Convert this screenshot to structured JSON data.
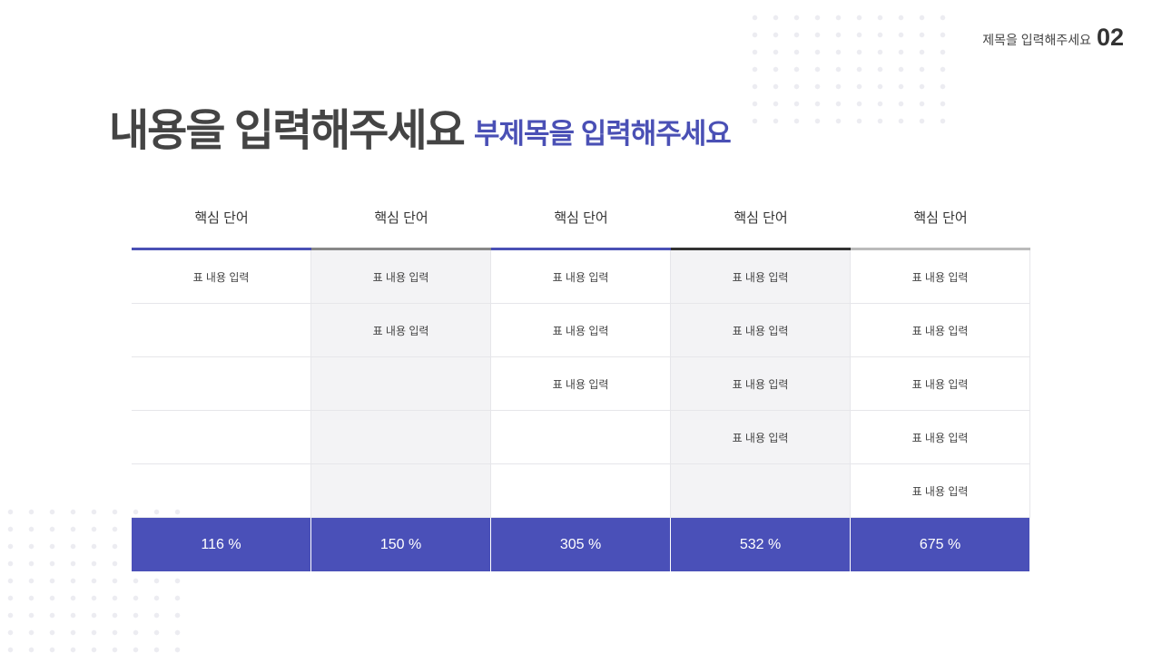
{
  "header": {
    "section": "제목을 입력해주세요",
    "number": "02",
    "title": "내용을 입력해주세요",
    "subtitle": "부제목을 입력해주세요"
  },
  "table": {
    "columns": [
      "핵심 단어",
      "핵심 단어",
      "핵심 단어",
      "핵심 단어",
      "핵심 단어"
    ],
    "rows": [
      [
        "표 내용 입력",
        "표 내용 입력",
        "표 내용 입력",
        "표 내용 입력",
        "표 내용 입력"
      ],
      [
        null,
        "표 내용 입력",
        "표 내용 입력",
        "표 내용 입력",
        "표 내용 입력"
      ],
      [
        null,
        null,
        "표 내용 입력",
        "표 내용 입력",
        "표 내용 입력"
      ],
      [
        null,
        null,
        null,
        "표 내용 입력",
        "표 내용 입력"
      ],
      [
        null,
        null,
        null,
        null,
        "표 내용 입력"
      ]
    ],
    "footer": [
      "116 %",
      "150 %",
      "305 %",
      "532 %",
      "675 %"
    ]
  }
}
